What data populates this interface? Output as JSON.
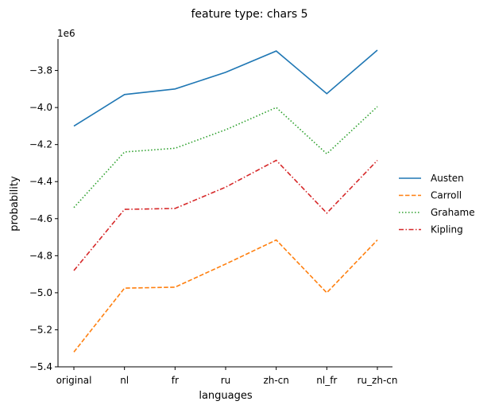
{
  "chart_data": {
    "type": "line",
    "title": "feature type: chars 5",
    "xlabel": "languages",
    "ylabel": "probability",
    "offset_label": "1e6",
    "categories": [
      "original",
      "nl",
      "fr",
      "ru",
      "zh-cn",
      "nl_fr",
      "ru_zh-cn"
    ],
    "ylim": [
      -5.4,
      -3.63
    ],
    "yticks": [
      -5.4,
      -5.2,
      -5.0,
      -4.8,
      -4.6,
      -4.4,
      -4.2,
      -4.0,
      -3.8
    ],
    "ytick_labels": [
      "−5.4",
      "−5.2",
      "−5.0",
      "−4.8",
      "−4.6",
      "−4.4",
      "−4.2",
      "−4.0",
      "−3.8"
    ],
    "legend_position": "right",
    "grid": false,
    "series": [
      {
        "name": "Austen",
        "color": "#1f77b4",
        "dash": "solid",
        "values": [
          -4.1,
          -3.93,
          -3.9,
          -3.81,
          -3.695,
          -3.925,
          -3.69
        ]
      },
      {
        "name": "Carroll",
        "color": "#ff7f0e",
        "dash": "dashed",
        "values": [
          -5.32,
          -4.975,
          -4.97,
          -4.845,
          -4.715,
          -5.0,
          -4.715
        ]
      },
      {
        "name": "Grahame",
        "color": "#2ca02c",
        "dash": "dotted",
        "values": [
          -4.54,
          -4.24,
          -4.22,
          -4.12,
          -4.0,
          -4.25,
          -3.995
        ]
      },
      {
        "name": "Kipling",
        "color": "#d62728",
        "dash": "dashdot",
        "values": [
          -4.88,
          -4.55,
          -4.545,
          -4.43,
          -4.285,
          -4.57,
          -4.285
        ]
      }
    ]
  }
}
